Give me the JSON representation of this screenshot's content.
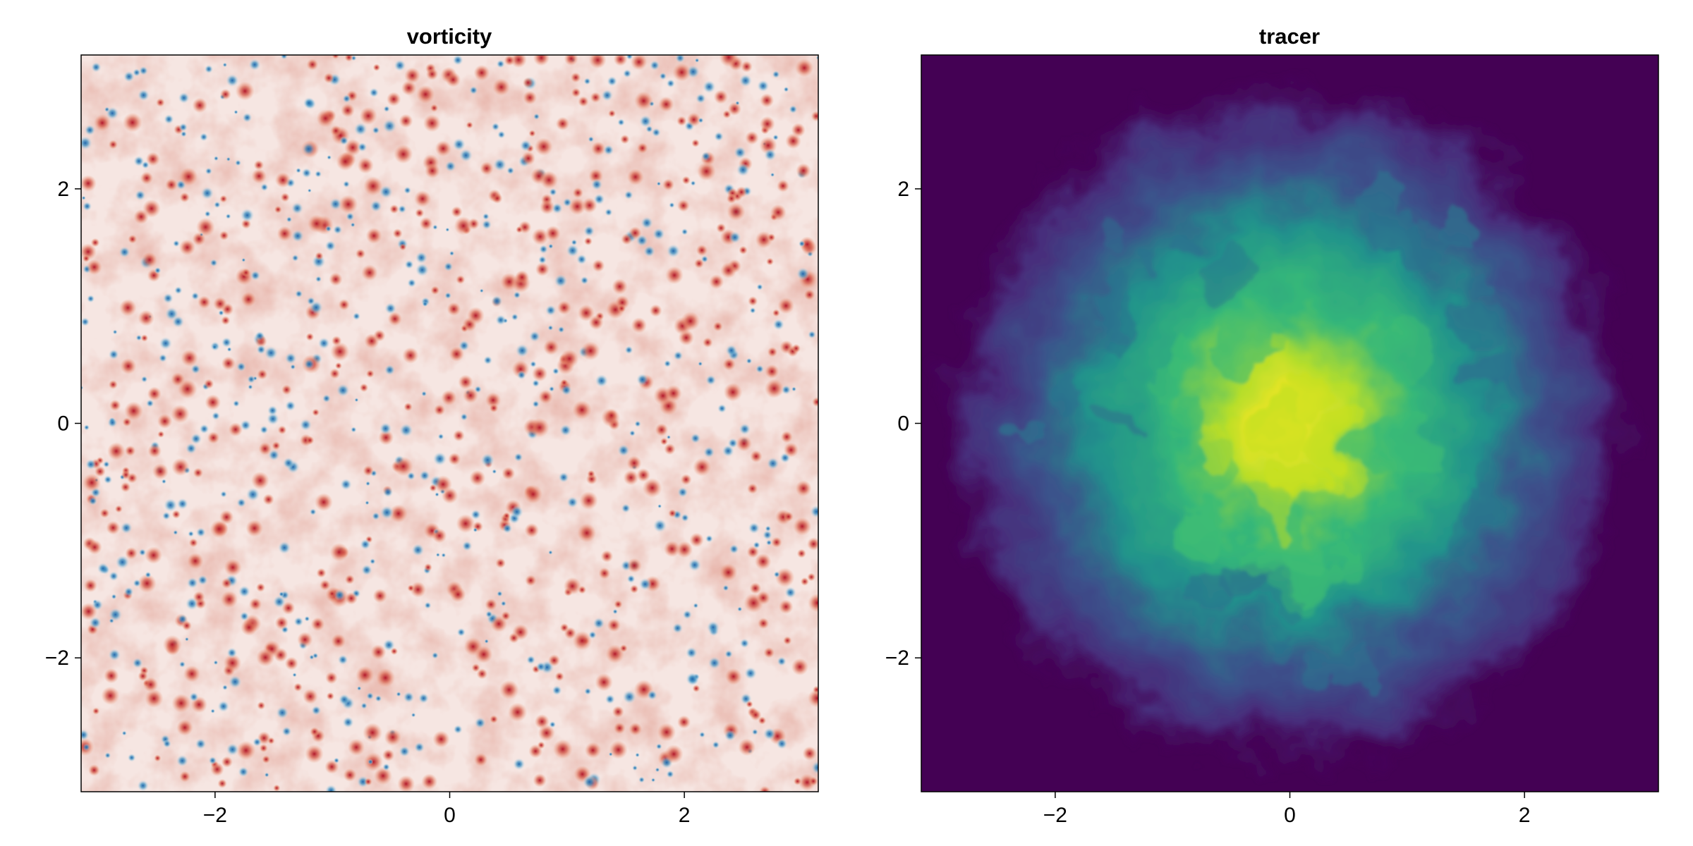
{
  "chart_data": [
    {
      "type": "heatmap",
      "title": "vorticity",
      "xlabel": "",
      "ylabel": "",
      "xlim": [
        -3.14159,
        3.14159
      ],
      "ylim": [
        -3.14159,
        3.14159
      ],
      "xticks": [
        -2,
        0,
        2
      ],
      "yticks": [
        -2,
        0,
        2
      ],
      "xtick_labels": [
        "−2",
        "0",
        "2"
      ],
      "ytick_labels": [
        "−2",
        "0",
        "2"
      ],
      "colormap": "balance",
      "colormap_colors": [
        "#2166ac",
        "#f7f7f7",
        "#b2182b"
      ],
      "background_color": "#f6e6e2",
      "grid": false,
      "description_values": {
        "pattern": "many small coherent vortices of both signs scattered uniformly in a turbulent field",
        "field": "vorticity"
      }
    },
    {
      "type": "heatmap",
      "title": "tracer",
      "xlabel": "",
      "ylabel": "",
      "xlim": [
        -3.14159,
        3.14159
      ],
      "ylim": [
        -3.14159,
        3.14159
      ],
      "xticks": [
        -2,
        0,
        2
      ],
      "yticks": [
        -2,
        0,
        2
      ],
      "xtick_labels": [
        "−2",
        "0",
        "2"
      ],
      "ytick_labels": [
        "−2",
        "0",
        "2"
      ],
      "colormap": "viridis",
      "colormap_colors": [
        "#440154",
        "#3b528b",
        "#21918c",
        "#5ec962",
        "#fde725"
      ],
      "background_color": "#440154",
      "grid": false,
      "tracer_center": [
        0,
        0
      ],
      "tracer_spread": 1.5
    }
  ]
}
